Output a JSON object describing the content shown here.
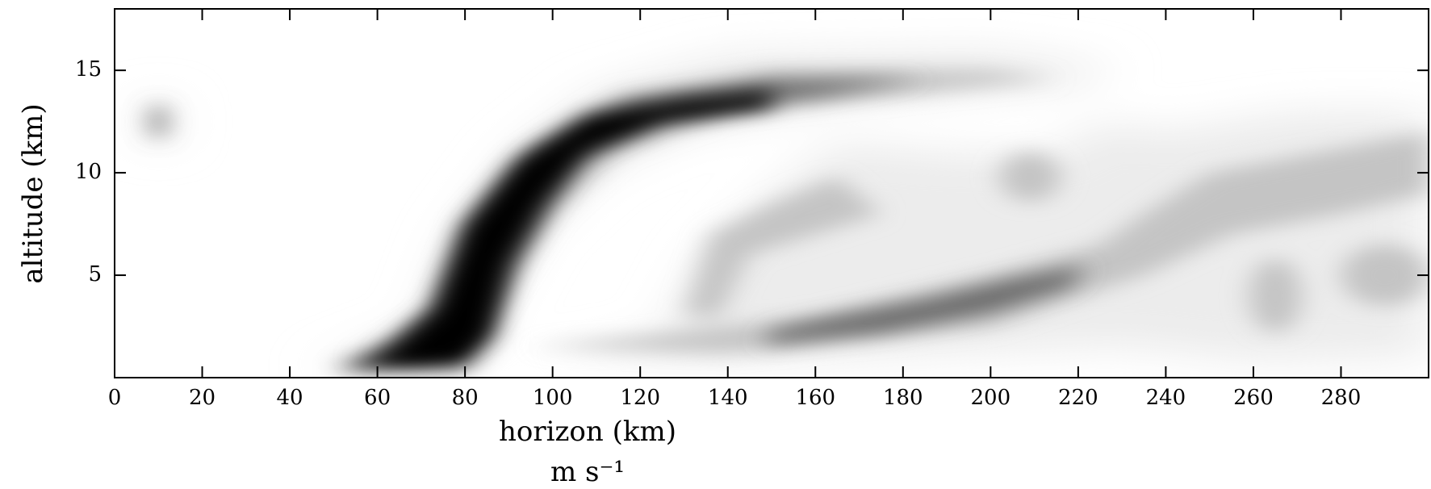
{
  "chart_data": {
    "type": "contour",
    "x_label": "horizon (km)",
    "y_label": "altitude (km)",
    "units_label": "m s⁻¹",
    "xlim": [
      0,
      300
    ],
    "xticks": [
      0,
      20,
      40,
      60,
      80,
      100,
      120,
      140,
      160,
      180,
      200,
      220,
      240,
      260,
      280
    ],
    "ylim": [
      0,
      18
    ],
    "yticks": [
      5,
      10,
      15
    ]
  }
}
